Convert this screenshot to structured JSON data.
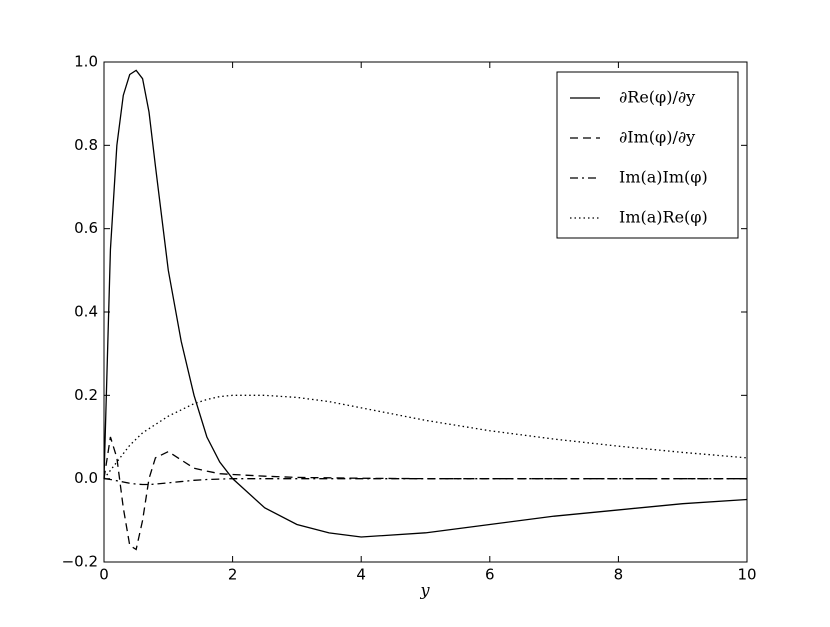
{
  "chart_data": {
    "type": "line",
    "xlabel": "y",
    "x": [
      0,
      0.1,
      0.2,
      0.3,
      0.4,
      0.5,
      0.6,
      0.7,
      0.8,
      1.0,
      1.2,
      1.4,
      1.6,
      1.8,
      2.0,
      2.5,
      3,
      3.5,
      4,
      5,
      6,
      7,
      8,
      9,
      10
    ],
    "series": [
      {
        "name": "∂Re(φ)/∂y",
        "color": "#000000",
        "linestyle": "solid",
        "values": [
          0,
          0.55,
          0.8,
          0.92,
          0.97,
          0.98,
          0.96,
          0.88,
          0.75,
          0.5,
          0.33,
          0.2,
          0.1,
          0.04,
          0.0,
          -0.07,
          -0.11,
          -0.13,
          -0.14,
          -0.13,
          -0.11,
          -0.09,
          -0.075,
          -0.06,
          -0.05
        ]
      },
      {
        "name": "∂Im(φ)/∂y",
        "color": "#000000",
        "linestyle": "dashed",
        "values": [
          0,
          0.1,
          0.05,
          -0.07,
          -0.16,
          -0.17,
          -0.1,
          0.0,
          0.05,
          0.065,
          0.045,
          0.025,
          0.018,
          0.012,
          0.01,
          0.006,
          0.003,
          0.002,
          0.001,
          0,
          0,
          0,
          0,
          0,
          0
        ]
      },
      {
        "name": "Im(a)Im(φ)",
        "color": "#000000",
        "linestyle": "dashdot",
        "values": [
          0,
          -0.002,
          -0.005,
          -0.008,
          -0.011,
          -0.013,
          -0.014,
          -0.014,
          -0.013,
          -0.01,
          -0.007,
          -0.004,
          -0.002,
          -0.001,
          0,
          0,
          0,
          0,
          0,
          0,
          0,
          0,
          0,
          0,
          0
        ]
      },
      {
        "name": "Im(a)Re(φ)",
        "color": "#000000",
        "linestyle": "dotted",
        "values": [
          0,
          0.02,
          0.04,
          0.06,
          0.08,
          0.095,
          0.11,
          0.12,
          0.13,
          0.15,
          0.165,
          0.18,
          0.19,
          0.197,
          0.2,
          0.2,
          0.195,
          0.185,
          0.17,
          0.14,
          0.115,
          0.095,
          0.078,
          0.063,
          0.05
        ]
      }
    ],
    "xlim": [
      0,
      10
    ],
    "ylim": [
      -0.2,
      1.0
    ],
    "xticks": [
      0,
      2,
      4,
      6,
      8,
      10
    ],
    "yticks": [
      {
        "value": -0.2,
        "label": "−0.2"
      },
      {
        "value": 0,
        "label": "0.0"
      },
      0.2,
      0.4,
      0.6,
      0.8,
      {
        "value": 1.0,
        "label": "1.0"
      }
    ],
    "grid": false,
    "legend": "upper right"
  }
}
